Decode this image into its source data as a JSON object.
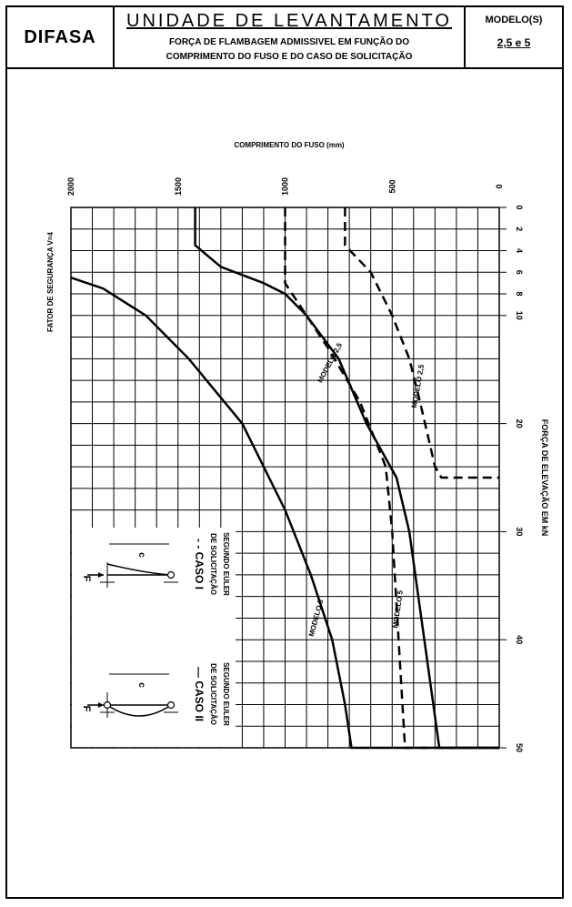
{
  "header": {
    "brand": "DIFASA",
    "title": "UNIDADE DE LEVANTAMENTO",
    "subtitle_line1": "FORÇA DE FLAMBAGEM ADMISSIVEL EM FUNÇÃO DO",
    "subtitle_line2": "COMPRIMENTO DO FUSO E DO CASO DE SOLICITAÇÃO",
    "model_label": "MODELO(S)",
    "model_value": "2,5 e 5"
  },
  "chart_data": {
    "type": "line",
    "top_axis_label": "COMPRIMENTO DO FUSO (mm)",
    "right_axis_label": "FORÇA DE ELEVAÇÃO EM kN",
    "left_note": "FATOR DE SEGURANÇA V=4",
    "length_ticks": [
      "2000",
      "1500",
      "1000",
      "500",
      "0"
    ],
    "force_ticks": [
      "0",
      "2",
      "4",
      "6",
      "8",
      "10",
      "20",
      "30",
      "40",
      "50"
    ],
    "length_range": [
      0,
      2000
    ],
    "force_range": [
      0,
      50
    ],
    "grid": true,
    "series": [
      {
        "name": "MODELO 5",
        "case": "CASO II",
        "style": "solid",
        "points": [
          [
            1420,
            0
          ],
          [
            1420,
            3.5
          ],
          [
            1300,
            5.5
          ],
          [
            1100,
            7
          ],
          [
            1000,
            8
          ],
          [
            900,
            10
          ],
          [
            750,
            14
          ],
          [
            620,
            20
          ],
          [
            480,
            25
          ],
          [
            420,
            30
          ],
          [
            350,
            40
          ],
          [
            280,
            50
          ],
          [
            0,
            50
          ]
        ]
      },
      {
        "name": "MODELO 5",
        "case": "CASO I",
        "style": "dashed",
        "points": [
          [
            1000,
            0
          ],
          [
            1000,
            7
          ],
          [
            900,
            10
          ],
          [
            800,
            13
          ],
          [
            650,
            18
          ],
          [
            530,
            24
          ],
          [
            500,
            30
          ],
          [
            470,
            40
          ],
          [
            440,
            50
          ],
          [
            0,
            50
          ]
        ]
      },
      {
        "name": "MODELO 2,5",
        "case": "CASO II",
        "style": "solid",
        "points": [
          [
            2000,
            6.5
          ],
          [
            1850,
            7.5
          ],
          [
            1650,
            10
          ],
          [
            1450,
            14
          ],
          [
            1200,
            20
          ],
          [
            1000,
            28
          ],
          [
            880,
            34
          ],
          [
            780,
            40
          ],
          [
            720,
            46
          ],
          [
            690,
            50
          ],
          [
            0,
            50
          ]
        ]
      },
      {
        "name": "MODELO 2,5",
        "case": "CASO I",
        "style": "dashed",
        "points": [
          [
            720,
            0
          ],
          [
            720,
            3.5
          ],
          [
            600,
            6
          ],
          [
            500,
            10
          ],
          [
            420,
            14
          ],
          [
            370,
            18
          ],
          [
            300,
            24
          ],
          [
            270,
            25
          ],
          [
            0,
            25
          ]
        ]
      }
    ],
    "curve_labels": [
      "MODELO 2,5",
      "MODELO 2,5",
      "MODELO 5",
      "MODELO 5"
    ],
    "legend": [
      {
        "label": "- - CASO I",
        "line2": "DE SOLICITAÇÃO",
        "line3": "SEGUNDO EULER"
      },
      {
        "label": "— CASO II",
        "line2": "DE SOLICITAÇÃO",
        "line3": "SEGUNDO EULER"
      }
    ],
    "symbols": {
      "force": "F",
      "length": "c"
    }
  }
}
